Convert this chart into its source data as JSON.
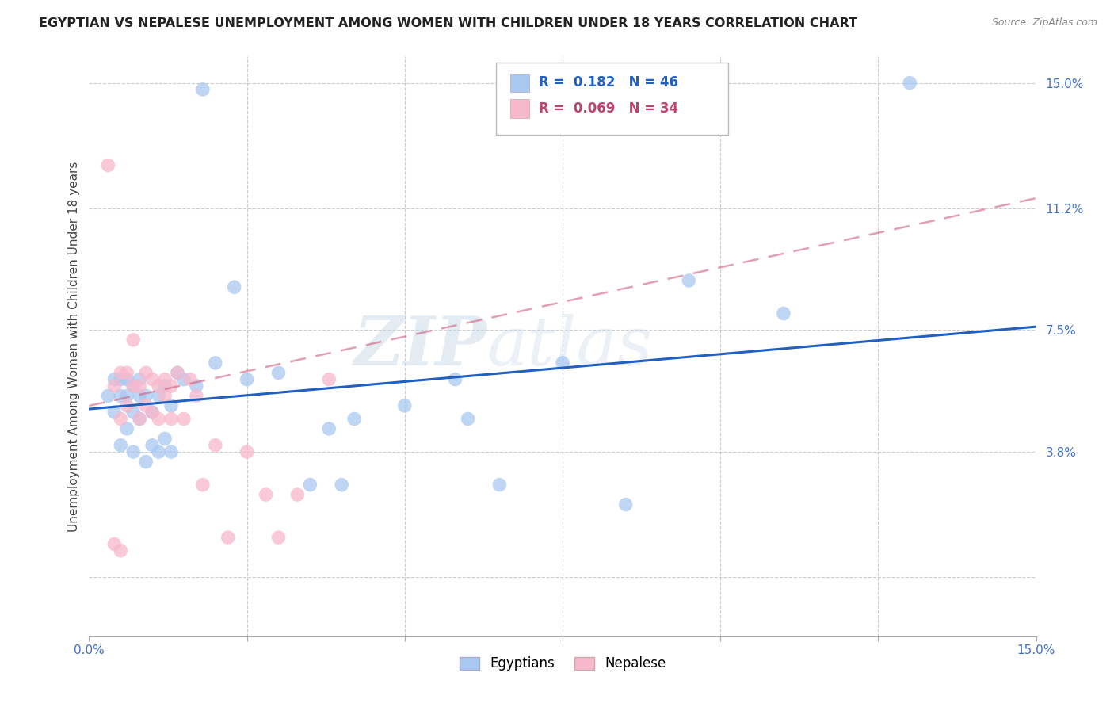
{
  "title": "EGYPTIAN VS NEPALESE UNEMPLOYMENT AMONG WOMEN WITH CHILDREN UNDER 18 YEARS CORRELATION CHART",
  "source": "Source: ZipAtlas.com",
  "ylabel": "Unemployment Among Women with Children Under 18 years",
  "blue_color": "#a8c8f0",
  "blue_edge_color": "#6aaae0",
  "pink_color": "#f8b8cc",
  "pink_edge_color": "#e88080",
  "trend_blue_color": "#2060c0",
  "trend_pink_color": "#d06080",
  "legend_R_blue": "0.182",
  "legend_N_blue": "46",
  "legend_R_pink": "0.069",
  "legend_N_pink": "34",
  "legend_label_blue": "Egyptians",
  "legend_label_pink": "Nepalese",
  "watermark": "ZIPatlas",
  "xmin": 0.0,
  "xmax": 0.15,
  "ymin": -0.018,
  "ymax": 0.158,
  "grid_color": "#cccccc",
  "right_ytick_vals": [
    0.0,
    0.038,
    0.075,
    0.112,
    0.15
  ],
  "right_yticklabels": [
    "",
    "3.8%",
    "7.5%",
    "11.2%",
    "15.0%"
  ],
  "xtick_vals": [
    0.0,
    0.025,
    0.05,
    0.075,
    0.1,
    0.125,
    0.15
  ],
  "xtick_labels": [
    "0.0%",
    "",
    "",
    "",
    "",
    "",
    "15.0%"
  ],
  "blue_x": [
    0.003,
    0.004,
    0.004,
    0.005,
    0.005,
    0.005,
    0.006,
    0.006,
    0.006,
    0.007,
    0.007,
    0.007,
    0.008,
    0.008,
    0.008,
    0.009,
    0.009,
    0.01,
    0.01,
    0.011,
    0.011,
    0.012,
    0.012,
    0.013,
    0.013,
    0.014,
    0.015,
    0.017,
    0.018,
    0.02,
    0.023,
    0.025,
    0.03,
    0.035,
    0.038,
    0.04,
    0.042,
    0.05,
    0.058,
    0.06,
    0.065,
    0.075,
    0.085,
    0.095,
    0.11,
    0.13
  ],
  "blue_y": [
    0.055,
    0.05,
    0.06,
    0.04,
    0.055,
    0.06,
    0.045,
    0.055,
    0.06,
    0.038,
    0.05,
    0.058,
    0.048,
    0.055,
    0.06,
    0.035,
    0.055,
    0.04,
    0.05,
    0.038,
    0.055,
    0.042,
    0.058,
    0.038,
    0.052,
    0.062,
    0.06,
    0.058,
    0.148,
    0.065,
    0.088,
    0.06,
    0.062,
    0.028,
    0.045,
    0.028,
    0.048,
    0.052,
    0.06,
    0.048,
    0.028,
    0.065,
    0.022,
    0.09,
    0.08,
    0.15
  ],
  "pink_x": [
    0.003,
    0.004,
    0.004,
    0.005,
    0.005,
    0.005,
    0.006,
    0.006,
    0.007,
    0.007,
    0.008,
    0.008,
    0.009,
    0.009,
    0.01,
    0.01,
    0.011,
    0.011,
    0.012,
    0.012,
    0.013,
    0.013,
    0.014,
    0.015,
    0.016,
    0.017,
    0.018,
    0.02,
    0.022,
    0.025,
    0.028,
    0.03,
    0.033,
    0.038
  ],
  "pink_y": [
    0.125,
    0.058,
    0.01,
    0.062,
    0.048,
    0.008,
    0.062,
    0.052,
    0.072,
    0.058,
    0.058,
    0.048,
    0.062,
    0.052,
    0.06,
    0.05,
    0.058,
    0.048,
    0.055,
    0.06,
    0.058,
    0.048,
    0.062,
    0.048,
    0.06,
    0.055,
    0.028,
    0.04,
    0.012,
    0.038,
    0.025,
    0.012,
    0.025,
    0.06
  ],
  "trend_blue_x_start": 0.0,
  "trend_blue_y_start": 0.051,
  "trend_blue_x_end": 0.15,
  "trend_blue_y_end": 0.076,
  "trend_pink_x_start": 0.0,
  "trend_pink_y_start": 0.052,
  "trend_pink_x_end": 0.15,
  "trend_pink_y_end": 0.115
}
